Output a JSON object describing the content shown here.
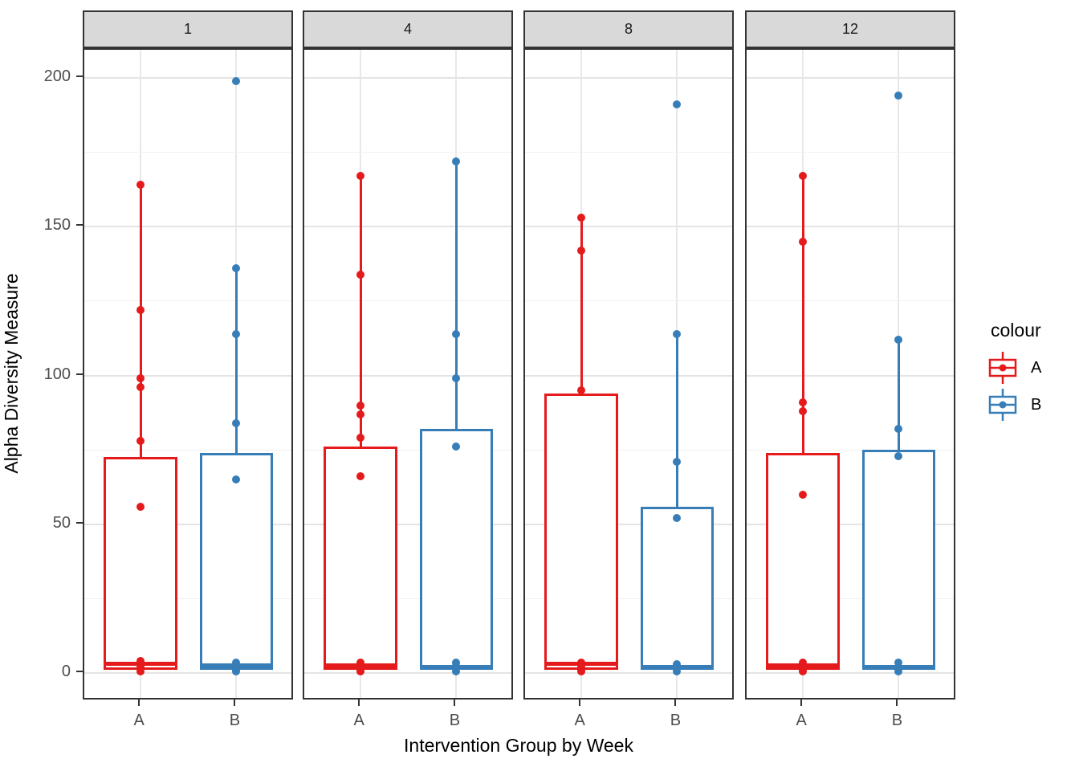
{
  "chart_data": {
    "type": "boxplot",
    "title": "",
    "xlabel": "Intervention Group by Week",
    "ylabel": "Alpha Diversity Measure",
    "y_ticks": [
      0,
      50,
      100,
      150,
      200
    ],
    "y_minor_ticks": [
      25,
      75,
      125,
      175
    ],
    "ylim": [
      -9.5,
      209.5
    ],
    "grid": "on",
    "legend": {
      "title": "colour",
      "position": "right",
      "entries": [
        {
          "label": "A",
          "color": "#E41A1C"
        },
        {
          "label": "B",
          "color": "#377EB8"
        }
      ]
    },
    "facet_variable_values": [
      "1",
      "4",
      "8",
      "12"
    ],
    "facets": [
      {
        "label": "1",
        "groups": [
          {
            "name": "A",
            "color": "#E41A1C",
            "box": {
              "q1": 1,
              "median": 3,
              "q3": 72.5,
              "whisker_low": 0.5,
              "whisker_high": 164
            },
            "points": [
              164,
              122,
              99,
              96,
              78,
              56,
              4,
              2.5,
              1.5,
              0.5
            ]
          },
          {
            "name": "B",
            "color": "#377EB8",
            "box": {
              "q1": 1,
              "median": 2.5,
              "q3": 74,
              "whisker_low": 0.5,
              "whisker_high": 136
            },
            "points": [
              199,
              136,
              114,
              84,
              65,
              3.5,
              2,
              1,
              0.5
            ]
          }
        ]
      },
      {
        "label": "4",
        "groups": [
          {
            "name": "A",
            "color": "#E41A1C",
            "box": {
              "q1": 1,
              "median": 2.5,
              "q3": 76,
              "whisker_low": 0.5,
              "whisker_high": 167
            },
            "points": [
              167,
              134,
              90,
              87,
              79,
              66,
              3.5,
              2,
              1,
              0.5
            ]
          },
          {
            "name": "B",
            "color": "#377EB8",
            "box": {
              "q1": 1,
              "median": 2,
              "q3": 82,
              "whisker_low": 0.5,
              "whisker_high": 172
            },
            "points": [
              172,
              114,
              99,
              76,
              3.5,
              2.5,
              1.5,
              0.5
            ]
          }
        ]
      },
      {
        "label": "8",
        "groups": [
          {
            "name": "A",
            "color": "#E41A1C",
            "box": {
              "q1": 1,
              "median": 3,
              "q3": 94,
              "whisker_low": 0.5,
              "whisker_high": 153
            },
            "points": [
              153,
              142,
              95,
              3.5,
              2,
              1,
              0.5
            ]
          },
          {
            "name": "B",
            "color": "#377EB8",
            "box": {
              "q1": 1,
              "median": 2,
              "q3": 56,
              "whisker_low": 0.5,
              "whisker_high": 114
            },
            "points": [
              191,
              114,
              71,
              52,
              3,
              1.5,
              0.5
            ]
          }
        ]
      },
      {
        "label": "12",
        "groups": [
          {
            "name": "A",
            "color": "#E41A1C",
            "box": {
              "q1": 1,
              "median": 2.5,
              "q3": 74,
              "whisker_low": 0.5,
              "whisker_high": 167
            },
            "points": [
              167,
              145,
              91,
              88,
              60,
              3.5,
              2,
              1,
              0.5
            ]
          },
          {
            "name": "B",
            "color": "#377EB8",
            "box": {
              "q1": 1,
              "median": 2,
              "q3": 75,
              "whisker_low": 0.5,
              "whisker_high": 112
            },
            "points": [
              194,
              112,
              82,
              73,
              3.5,
              2,
              0.5
            ]
          }
        ]
      }
    ]
  },
  "colors": {
    "group_a": "#E41A1C",
    "group_b": "#377EB8",
    "strip_background": "#D9D9D9",
    "panel_border": "#333333",
    "grid_major": "#E4E4E4",
    "grid_minor": "#F0F0F0",
    "axis_text": "#4D4D4D"
  }
}
